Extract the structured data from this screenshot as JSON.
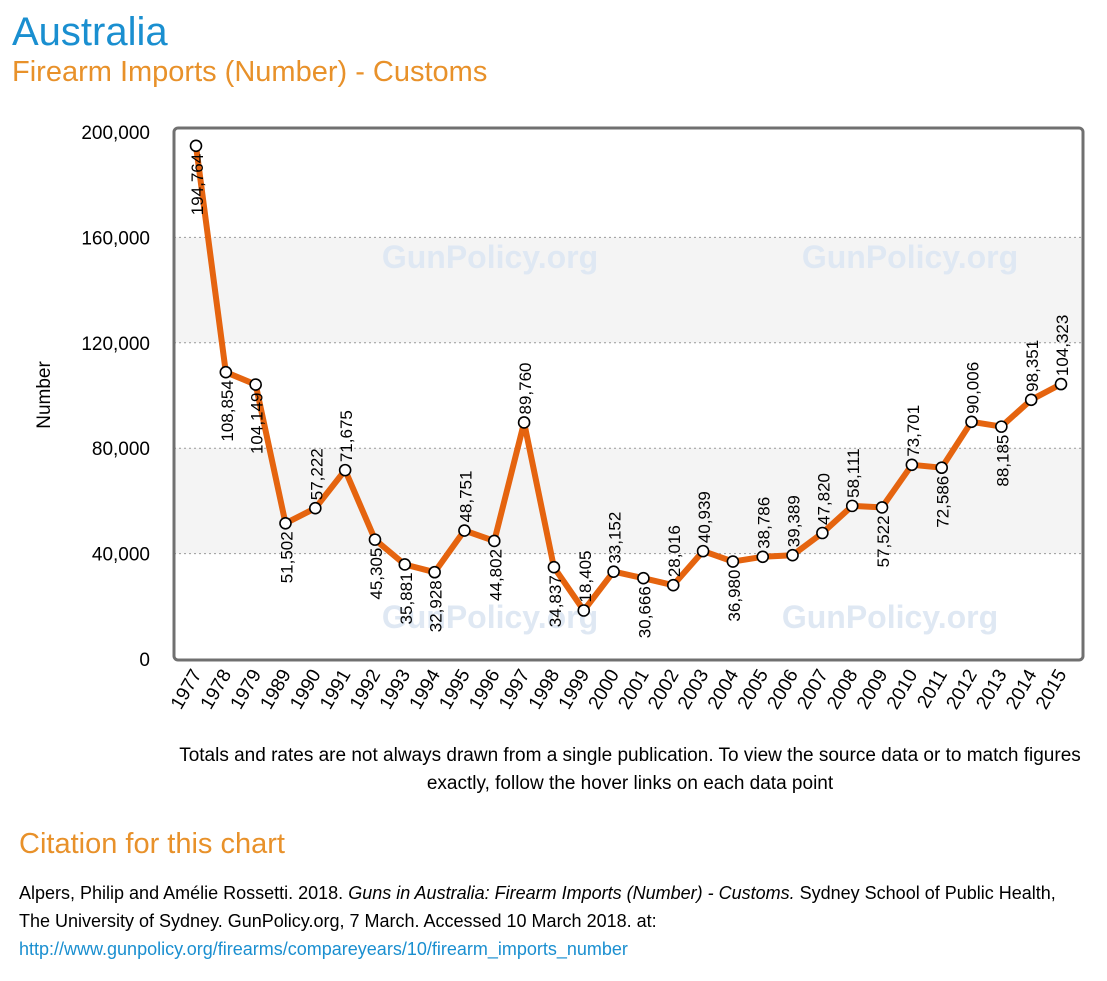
{
  "header": {
    "country": "Australia",
    "subtitle": "Firearm Imports (Number) - Customs"
  },
  "watermark": "GunPolicy.org",
  "colors": {
    "title": "#1a8fd0",
    "subtitle": "#e8912a",
    "line": "#e5640f",
    "band": "#f4f4f4",
    "frame": "#707070",
    "link": "#1a8fd0"
  },
  "chart_data": {
    "type": "line",
    "title": "Firearm Imports (Number) - Customs",
    "xlabel": "",
    "ylabel": "Number",
    "ylim": [
      0,
      200000
    ],
    "yticks": [
      0,
      40000,
      80000,
      120000,
      160000,
      200000
    ],
    "ytick_labels": [
      "0",
      "40,000",
      "80,000",
      "120,000",
      "160,000",
      "200,000"
    ],
    "grid": "horizontal dotted",
    "categories": [
      "1977",
      "1978",
      "1979",
      "1989",
      "1990",
      "1991",
      "1992",
      "1993",
      "1994",
      "1995",
      "1996",
      "1997",
      "1998",
      "1999",
      "2000",
      "2001",
      "2002",
      "2003",
      "2004",
      "2005",
      "2006",
      "2007",
      "2008",
      "2009",
      "2010",
      "2011",
      "2012",
      "2013",
      "2014",
      "2015"
    ],
    "values": [
      194764,
      108854,
      104149,
      51502,
      57222,
      71675,
      45305,
      35881,
      32928,
      48751,
      44802,
      89760,
      34837,
      18405,
      33152,
      30666,
      28016,
      40939,
      36980,
      38786,
      39389,
      47820,
      58111,
      57522,
      73701,
      72586,
      90006,
      88185,
      98351,
      104323
    ],
    "value_labels": [
      "194,764",
      "108,854",
      "104,149",
      "51,502",
      "57,222",
      "71,675",
      "45,305",
      "35,881",
      "32,928",
      "48,751",
      "44,802",
      "89,760",
      "34,837",
      "18,405",
      "33,152",
      "30,666",
      "28,016",
      "40,939",
      "36,980",
      "38,786",
      "39,389",
      "47,820",
      "58,111",
      "57,522",
      "73,701",
      "72,586",
      "90,006",
      "88,185",
      "98,351",
      "104,323"
    ],
    "label_position": [
      "below",
      "below",
      "below",
      "below",
      "above",
      "above",
      "below",
      "below",
      "below",
      "above",
      "below",
      "above",
      "below",
      "above",
      "above",
      "below",
      "above",
      "above",
      "below",
      "above",
      "above",
      "above",
      "above",
      "below",
      "above",
      "below",
      "above",
      "below",
      "above",
      "above"
    ]
  },
  "note": "Totals and rates are not always drawn from a single publication. To view the source data or to match figures exactly, follow the hover links on each data point",
  "citation": {
    "heading": "Citation for this chart",
    "authors": "Alpers, Philip and Amélie Rossetti. 2018. ",
    "work_title": "Guns in Australia: Firearm Imports (Number) - Customs.",
    "rest": " Sydney School of Public Health, The University of Sydney. GunPolicy.org, 7 March. Accessed 10 March 2018. at: ",
    "url": "http://www.gunpolicy.org/firearms/compareyears/10/firearm_imports_number"
  }
}
